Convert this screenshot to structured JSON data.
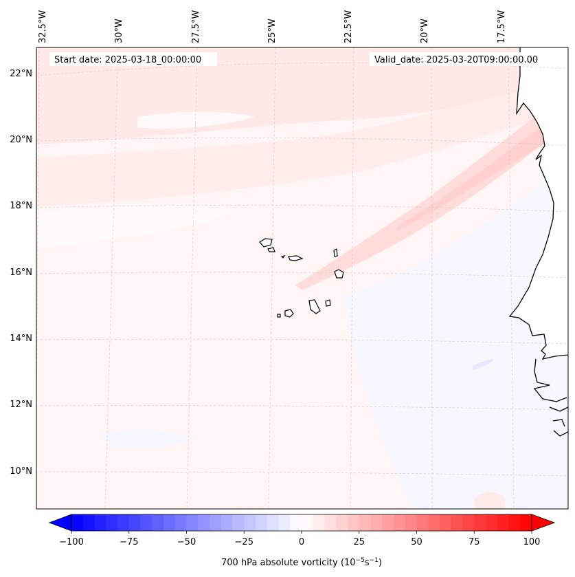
{
  "header": {
    "start_label": "Start date: 2025-03-18_00:00:00",
    "valid_label": "Valid_date: 2025-03-20T09:00:00.00"
  },
  "map": {
    "region": "Cape Verde / West African coast",
    "lon_labels": [
      "32.5°W",
      "30°W",
      "27.5°W",
      "25°W",
      "22.5°W",
      "20°W",
      "17.5°W"
    ],
    "lat_labels": [
      "22°N",
      "20°N",
      "18°N",
      "16°N",
      "14°N",
      "12°N",
      "10°N"
    ],
    "gridlines": true,
    "coastline_color": "#000000"
  },
  "colorbar": {
    "label_prefix": "700 hPa absolute vorticity (10",
    "label_exp1": "−5",
    "label_mid": "s",
    "label_exp2": "−1",
    "label_suffix": ")",
    "tick_labels": [
      "−100",
      "−75",
      "−50",
      "−25",
      "0",
      "25",
      "50",
      "75",
      "100"
    ],
    "vmin": -100,
    "vmax": 100,
    "levels": 40,
    "extend": "both",
    "cmap": "bwr",
    "color_min": "#0000ff",
    "color_mid": "#ffffff",
    "color_max": "#ff0000"
  }
}
